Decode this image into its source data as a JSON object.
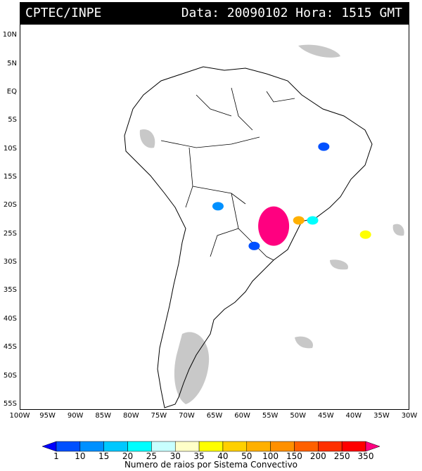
{
  "header": {
    "agency": "CPTEC/INPE",
    "stamp": "Data: 20090102 Hora: 1515 GMT"
  },
  "map": {
    "lat_ticks": [
      "10N",
      "5N",
      "EQ",
      "5S",
      "10S",
      "15S",
      "20S",
      "25S",
      "30S",
      "35S",
      "40S",
      "45S",
      "50S",
      "55S"
    ],
    "lon_ticks": [
      "100W",
      "95W",
      "90W",
      "85W",
      "80W",
      "75W",
      "70W",
      "65W",
      "60W",
      "55W",
      "50W",
      "45W",
      "40W",
      "35W",
      "30W"
    ]
  },
  "legend": {
    "title": "Numero de raios por Sistema Convectivo",
    "labels": [
      "1",
      "10",
      "15",
      "20",
      "25",
      "30",
      "35",
      "40",
      "50",
      "100",
      "150",
      "200",
      "250",
      "350"
    ],
    "colors": [
      "#0000ff",
      "#0050ff",
      "#0090ff",
      "#00c8ff",
      "#00ffff",
      "#c8ffff",
      "#ffffc8",
      "#ffff00",
      "#ffd000",
      "#ffb000",
      "#ff9000",
      "#ff6000",
      "#ff3000",
      "#ff0000",
      "#ff0080"
    ]
  },
  "systems": [
    {
      "name": "system-paraguay-north",
      "lon": -64.5,
      "lat": -20,
      "color": "#0090ff"
    },
    {
      "name": "system-parana-large",
      "lon": -54.5,
      "lat": -23.5,
      "color": "#ff0080"
    },
    {
      "name": "system-sao-paulo",
      "lon": -47.5,
      "lat": -22.5,
      "color": "#00ffff"
    },
    {
      "name": "system-minas-yellow",
      "lon": -50,
      "lat": -22.5,
      "color": "#ffb000"
    },
    {
      "name": "system-atlantic",
      "lon": -38,
      "lat": -25,
      "color": "#ffff00"
    },
    {
      "name": "system-bahia-north",
      "lon": -45.5,
      "lat": -9.5,
      "color": "#0050ff"
    },
    {
      "name": "system-argentina",
      "lon": -58,
      "lat": -27,
      "color": "#0050ff"
    }
  ]
}
